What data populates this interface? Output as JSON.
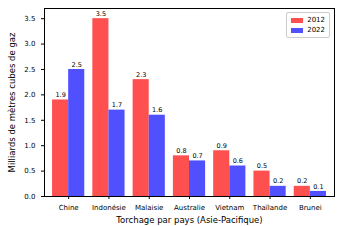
{
  "chart_data": {
    "type": "bar",
    "categories": [
      "Chine",
      "Indonésie",
      "Malaisie",
      "Australie",
      "Vietnam",
      "Thaïlande",
      "Brunei"
    ],
    "series": [
      {
        "name": "2012",
        "color": "#ff5050",
        "values": [
          1.9,
          3.5,
          2.3,
          0.8,
          0.9,
          0.5,
          0.2
        ]
      },
      {
        "name": "2022",
        "color": "#5050ff",
        "values": [
          2.5,
          1.7,
          1.6,
          0.7,
          0.6,
          0.2,
          0.1
        ]
      }
    ],
    "xlabel": "Torchage par pays (Asie-Pacifique)",
    "ylabel": "Milliards de mètres cubes de gaz",
    "ylim": [
      0,
      3.7
    ],
    "yticks": [
      {
        "value": 0,
        "label": "0.0"
      },
      0.5,
      {
        "value": 1,
        "label": "1.0"
      },
      1.5,
      {
        "value": 2,
        "label": "2.0"
      },
      2.5,
      {
        "value": 3,
        "label": "3.0"
      },
      3.5
    ],
    "data_labels": true,
    "legend": "upper right",
    "grid": false
  }
}
